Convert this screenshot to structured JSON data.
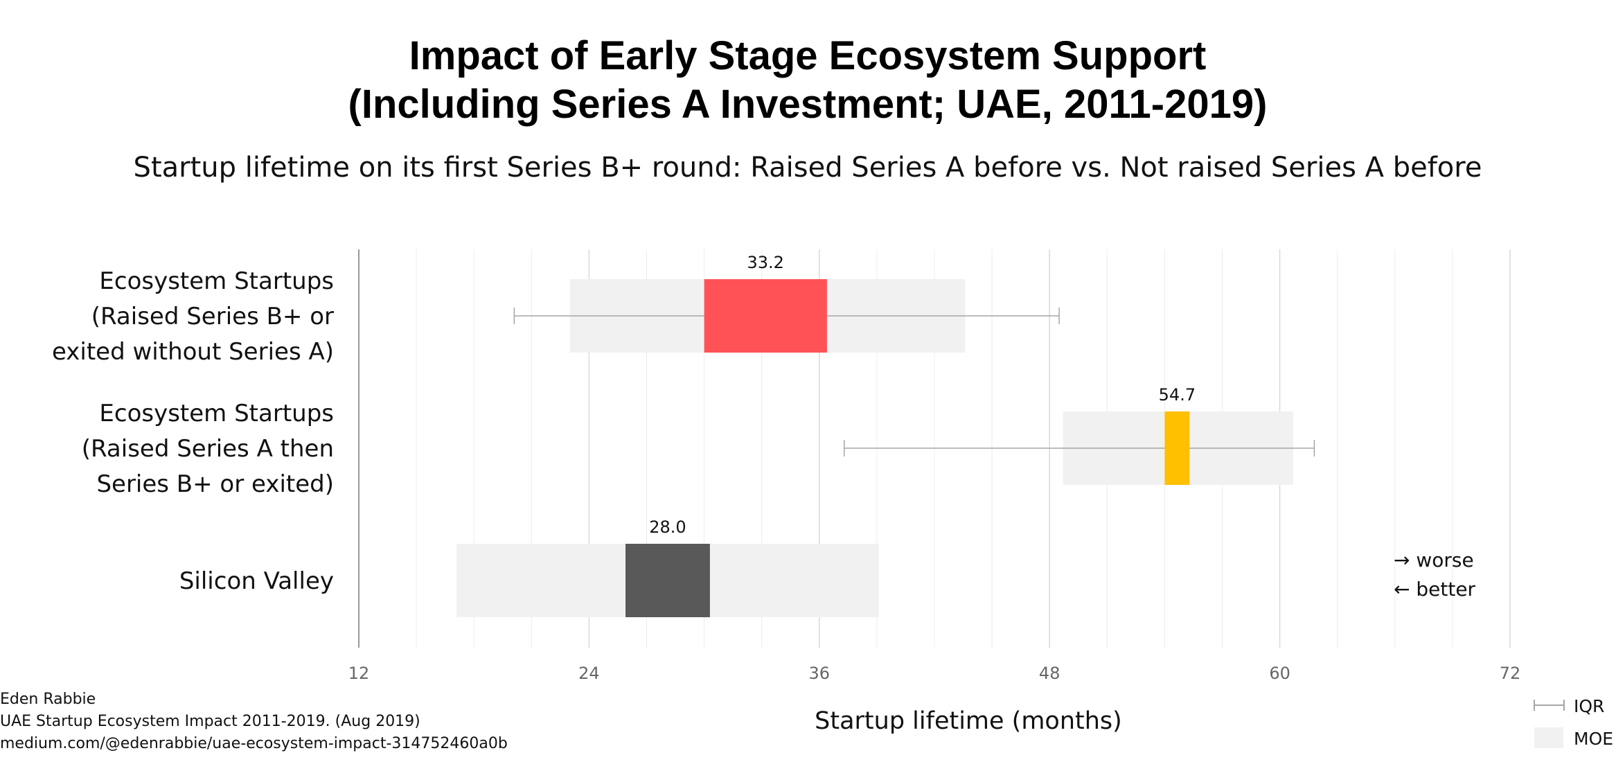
{
  "chart_data": {
    "type": "bar",
    "title_lines": [
      "Impact of Early Stage Ecosystem Support",
      "(Including Series A Investment; UAE, 2011-2019)"
    ],
    "subtitle": "Startup lifetime on its first Series B+ round: Raised Series A before vs. Not raised Series A before",
    "xlabel": "Startup lifetime (months)",
    "xlim": [
      12,
      72
    ],
    "xticks": [
      12,
      24,
      36,
      48,
      60,
      72
    ],
    "minor_gridline_step": 3,
    "orientation": "horizontal",
    "categories": [
      {
        "label_lines": [
          "Ecosystem Startups",
          "(Raised Series B+ or",
          "exited without Series A)"
        ],
        "value": 33.2,
        "value_label": "33.2",
        "bar_range": [
          30.0,
          36.4
        ],
        "moe": [
          23.0,
          43.6
        ],
        "iqr": [
          20.1,
          48.5
        ],
        "color": "#ff5257"
      },
      {
        "label_lines": [
          "Ecosystem Startups",
          "(Raised Series A then",
          "Series B+ or exited)"
        ],
        "value": 54.7,
        "value_label": "54.7",
        "bar_range": [
          54.0,
          55.3
        ],
        "moe": [
          48.7,
          60.7
        ],
        "iqr": [
          37.3,
          61.8
        ],
        "color": "#ffc000"
      },
      {
        "label_lines": [
          "Silicon Valley"
        ],
        "value": 28.0,
        "value_label": "28.0",
        "bar_range": [
          25.9,
          30.3
        ],
        "moe": [
          17.1,
          39.1
        ],
        "iqr": null,
        "color": "#595959"
      }
    ],
    "direction_notes": [
      "→ worse",
      "← better"
    ],
    "legend": {
      "iqr_label": "IQR",
      "moe_label": "MOE",
      "moe_color": "#f2f1f2",
      "iqr_color": "#a6a6a6"
    },
    "credits": [
      "Eden Rabbie",
      "UAE Startup Ecosystem Impact 2011-2019. (Aug 2019)",
      "medium.com/@edenrabbie/uae-ecosystem-impact-314752460a0b"
    ]
  }
}
